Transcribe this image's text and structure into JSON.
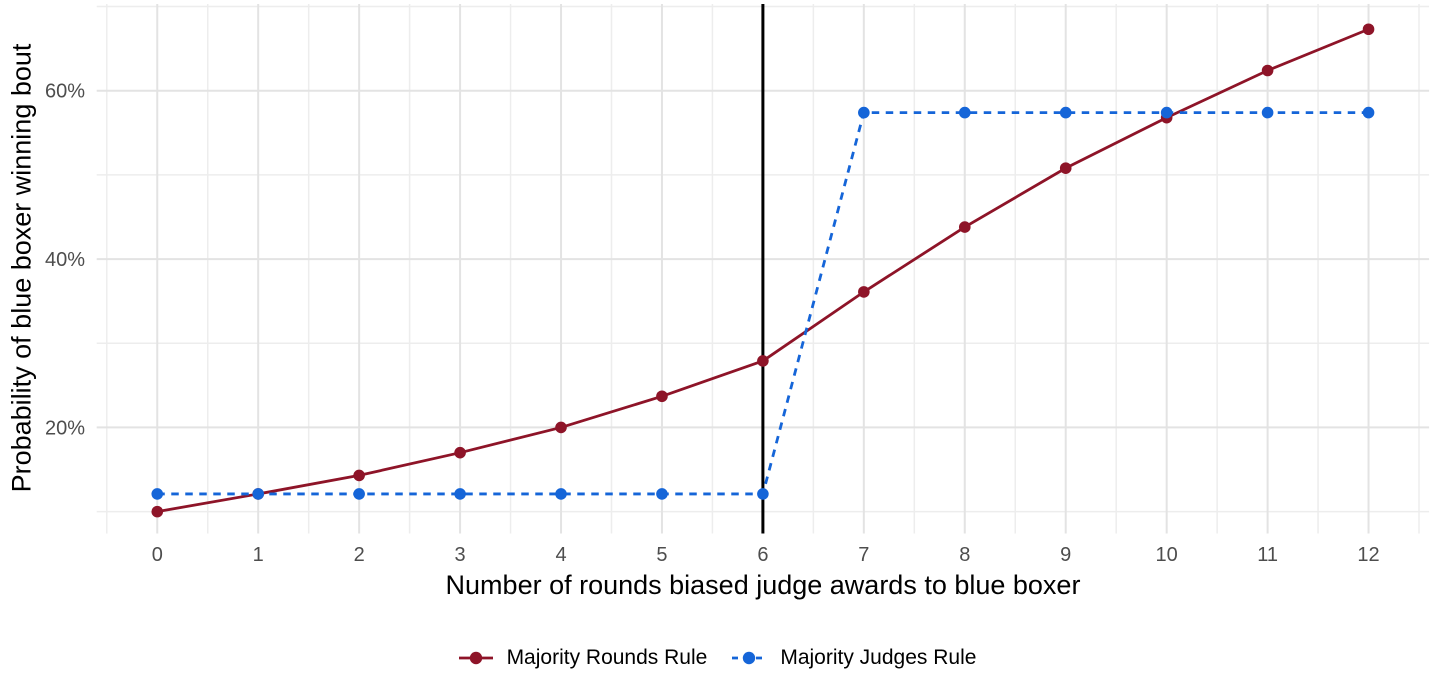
{
  "chart_data": {
    "type": "line",
    "xlabel": "Number of rounds biased judge awards to blue boxer",
    "ylabel": "Probability of blue boxer winning bout",
    "x": [
      0,
      1,
      2,
      3,
      4,
      5,
      6,
      7,
      8,
      9,
      10,
      11,
      12
    ],
    "series": [
      {
        "name": "Majority Rounds Rule",
        "color": "#8E1428",
        "style": "solid",
        "marker": "circle",
        "values": [
          10.0,
          12.1,
          14.3,
          17.0,
          20.0,
          23.7,
          27.9,
          36.1,
          43.8,
          50.8,
          56.8,
          62.4,
          67.3
        ]
      },
      {
        "name": "Majority Judges Rule",
        "color": "#1565D8",
        "style": "dashed",
        "marker": "circle",
        "values": [
          12.1,
          12.1,
          12.1,
          12.1,
          12.1,
          12.1,
          12.1,
          57.4,
          57.4,
          57.4,
          57.4,
          57.4,
          57.4
        ]
      }
    ],
    "x_ticks": [
      0,
      1,
      2,
      3,
      4,
      5,
      6,
      7,
      8,
      9,
      10,
      11,
      12
    ],
    "x_minor": [
      -0.5,
      0.5,
      1.5,
      2.5,
      3.5,
      4.5,
      5.5,
      6.5,
      7.5,
      8.5,
      9.5,
      10.5,
      11.5,
      12.5
    ],
    "y_ticks": [
      {
        "value": 20,
        "label": "20%"
      },
      {
        "value": 40,
        "label": "40%"
      },
      {
        "value": 60,
        "label": "60%"
      }
    ],
    "y_minor": [
      10,
      30,
      50,
      70
    ],
    "xlim": [
      -0.6,
      12.6
    ],
    "ylim": [
      7.4,
      70.3
    ],
    "vline": {
      "x": 6,
      "color": "#000000"
    },
    "grid": {
      "major_color": "#e3e3e3",
      "minor_color": "#ededed",
      "grid_on": true
    },
    "tick_label_color": "#4d4d4d",
    "axis_title_color": "#000000",
    "legend_position": "bottom"
  }
}
